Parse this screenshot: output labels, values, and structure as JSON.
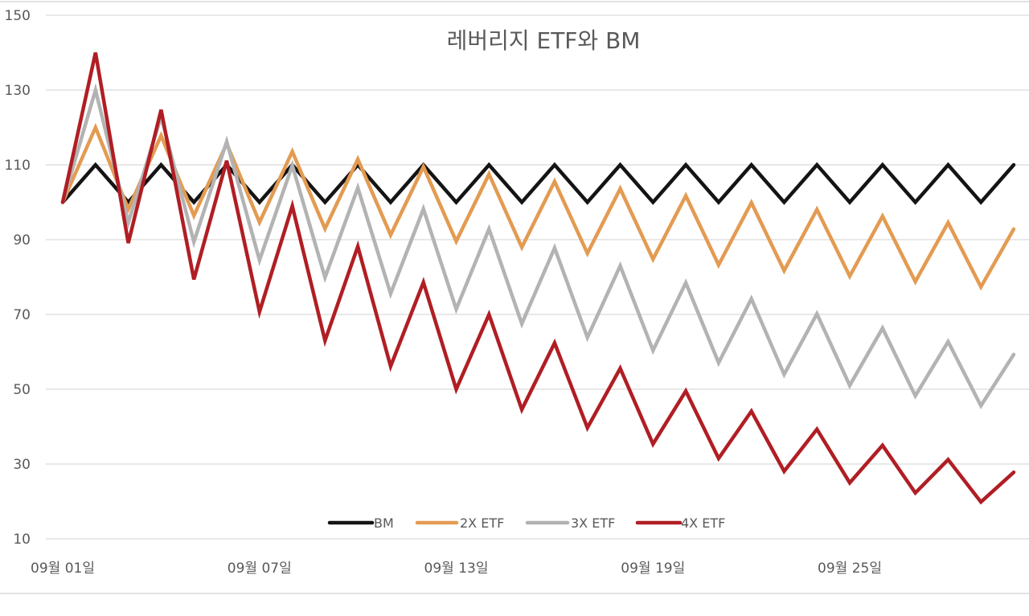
{
  "chart_data": {
    "type": "line",
    "title": "레버리지 ETF와 BM",
    "xlabel": "",
    "ylabel": "",
    "ylim": [
      10,
      150
    ],
    "yticks": [
      150,
      130,
      110,
      90,
      70,
      50,
      30,
      10
    ],
    "grid": true,
    "legend_position": "bottom",
    "x": [
      "09월 01일",
      "09월 02일",
      "09월 03일",
      "09월 04일",
      "09월 05일",
      "09월 06일",
      "09월 07일",
      "09월 08일",
      "09월 09일",
      "09월 10일",
      "09월 11일",
      "09월 12일",
      "09월 13일",
      "09월 14일",
      "09월 15일",
      "09월 16일",
      "09월 17일",
      "09월 18일",
      "09월 19일",
      "09월 20일",
      "09월 21일",
      "09월 22일",
      "09월 23일",
      "09월 24일",
      "09월 25일",
      "09월 26일",
      "09월 27일",
      "09월 28일",
      "09월 29일",
      "09월 30일"
    ],
    "xtick_labels": [
      {
        "index": 0,
        "label": "09월 01일"
      },
      {
        "index": 6,
        "label": "09월 07일"
      },
      {
        "index": 12,
        "label": "09월 13일"
      },
      {
        "index": 18,
        "label": "09월 19일"
      },
      {
        "index": 24,
        "label": "09월 25일"
      }
    ],
    "series": [
      {
        "name": "BM",
        "color": "#141414",
        "values": [
          100,
          110,
          100,
          110,
          100,
          110,
          100,
          110,
          100,
          110,
          100,
          110,
          100,
          110,
          100,
          110,
          100,
          110,
          100,
          110,
          100,
          110,
          100,
          110,
          100,
          110,
          100,
          110,
          100,
          110
        ]
      },
      {
        "name": "2X ETF",
        "color": "#e39b52",
        "values": [
          100,
          120,
          98.18,
          117.82,
          96.4,
          115.68,
          94.65,
          113.58,
          92.93,
          111.51,
          91.24,
          109.49,
          89.58,
          107.5,
          87.95,
          105.54,
          86.35,
          103.62,
          84.78,
          101.74,
          83.24,
          99.89,
          81.73,
          98.07,
          80.24,
          96.29,
          78.78,
          94.54,
          77.35,
          92.82
        ]
      },
      {
        "name": "3X ETF",
        "color": "#b3b3b3",
        "values": [
          100,
          130,
          94.55,
          122.91,
          89.39,
          116.21,
          84.51,
          109.87,
          79.9,
          103.87,
          75.54,
          98.21,
          71.42,
          92.85,
          67.53,
          87.79,
          63.84,
          83.0,
          60.36,
          78.47,
          57.07,
          74.19,
          53.96,
          70.14,
          51.01,
          66.32,
          48.23,
          62.7,
          45.6,
          59.28
        ]
      },
      {
        "name": "4X ETF",
        "color": "#b01e24",
        "values": [
          100,
          140,
          89.09,
          124.73,
          79.37,
          111.12,
          70.71,
          99.0,
          63.0,
          88.2,
          56.13,
          78.58,
          50.0,
          70.01,
          44.55,
          62.37,
          39.69,
          55.57,
          35.36,
          49.5,
          31.5,
          44.1,
          28.07,
          39.29,
          25.0,
          35.0,
          22.28,
          31.19,
          19.85,
          27.79
        ]
      }
    ]
  }
}
